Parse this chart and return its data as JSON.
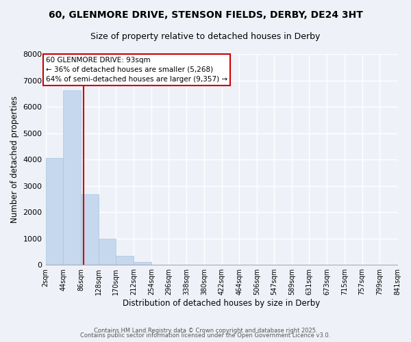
{
  "title": "60, GLENMORE DRIVE, STENSON FIELDS, DERBY, DE24 3HT",
  "subtitle": "Size of property relative to detached houses in Derby",
  "xlabel": "Distribution of detached houses by size in Derby",
  "ylabel": "Number of detached properties",
  "bar_color": "#c5d8ed",
  "bar_edge_color": "#a8c4de",
  "vline_color": "#cc0000",
  "vline_x": 93,
  "bin_edges": [
    2,
    44,
    86,
    128,
    170,
    212,
    254,
    296,
    338,
    380,
    422,
    464,
    506,
    547,
    589,
    631,
    673,
    715,
    757,
    799,
    841
  ],
  "bin_labels": [
    "2sqm",
    "44sqm",
    "86sqm",
    "128sqm",
    "170sqm",
    "212sqm",
    "254sqm",
    "296sqm",
    "338sqm",
    "380sqm",
    "422sqm",
    "464sqm",
    "506sqm",
    "547sqm",
    "589sqm",
    "631sqm",
    "673sqm",
    "715sqm",
    "757sqm",
    "799sqm",
    "841sqm"
  ],
  "bar_heights": [
    4050,
    6630,
    2670,
    1000,
    340,
    110,
    0,
    0,
    0,
    0,
    0,
    0,
    0,
    0,
    0,
    0,
    0,
    0,
    0,
    0
  ],
  "ylim": [
    0,
    8000
  ],
  "yticks": [
    0,
    1000,
    2000,
    3000,
    4000,
    5000,
    6000,
    7000,
    8000
  ],
  "annotation_title": "60 GLENMORE DRIVE: 93sqm",
  "annotation_line2": "← 36% of detached houses are smaller (5,268)",
  "annotation_line3": "64% of semi-detached houses are larger (9,357) →",
  "annotation_box_color": "#ffffff",
  "annotation_box_edge": "#cc0000",
  "footnote1": "Contains HM Land Registry data © Crown copyright and database right 2025.",
  "footnote2": "Contains public sector information licensed under the Open Government Licence v3.0.",
  "background_color": "#eef2f8"
}
